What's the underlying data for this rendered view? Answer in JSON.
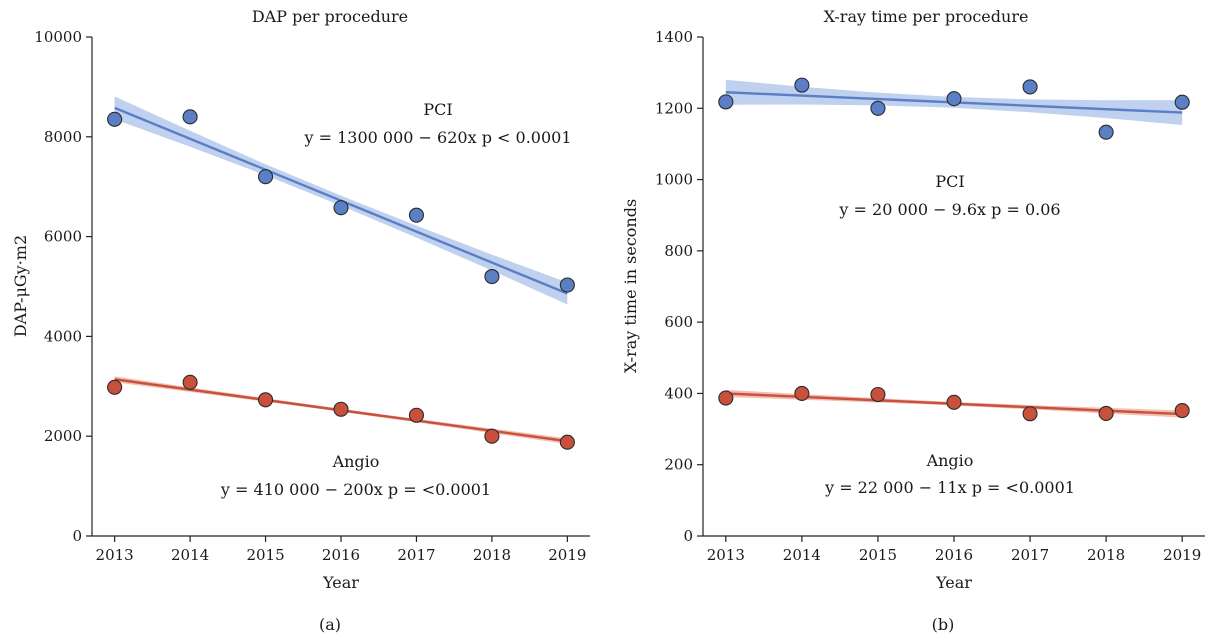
{
  "chart_data": [
    {
      "type": "scatter",
      "panel_label": "(a)",
      "title": "DAP per procedure",
      "xlabel": "Year",
      "ylabel": "DAP-μGy·m2",
      "x": [
        2013,
        2014,
        2015,
        2016,
        2017,
        2018,
        2019
      ],
      "xlim": [
        2012.7,
        2019.3
      ],
      "ylim": [
        0,
        10000
      ],
      "yticks": [
        "0",
        "2000",
        "4000",
        "6000",
        "8000",
        "10000"
      ],
      "xticks": [
        "2013",
        "2014",
        "2015",
        "2016",
        "2017",
        "2018",
        "2019"
      ],
      "grid": false,
      "series": [
        {
          "name": "PCI",
          "color": "#5b7fc4",
          "band_color": "#a9c2e8",
          "values": [
            8350,
            8400,
            7200,
            6580,
            6430,
            5200,
            5030
          ],
          "fit": [
            [
              2013,
              8580
            ],
            [
              2019,
              4860
            ]
          ],
          "band_halfwidth": [
            230,
            160,
            110,
            100,
            120,
            160,
            220
          ],
          "label": "PCI",
          "equation": "y = 1300 000 − 620x p < 0.0001"
        },
        {
          "name": "Angio",
          "color": "#c8513c",
          "band_color": "#f0a99c",
          "values": [
            2980,
            3080,
            2730,
            2540,
            2420,
            2000,
            1880
          ],
          "fit": [
            [
              2013,
              3140
            ],
            [
              2019,
              1900
            ]
          ],
          "band_halfwidth": [
            60,
            45,
            35,
            30,
            35,
            45,
            60
          ],
          "label": "Angio",
          "equation": "y = 410 000 − 200x p = <0.0001"
        }
      ]
    },
    {
      "type": "scatter",
      "panel_label": "(b)",
      "title": "X-ray time per procedure",
      "xlabel": "Year",
      "ylabel": "X-ray time in seconds",
      "x": [
        2013,
        2014,
        2015,
        2016,
        2017,
        2018,
        2019
      ],
      "xlim": [
        2012.7,
        2019.3
      ],
      "ylim": [
        0,
        1400
      ],
      "yticks": [
        "0",
        "200",
        "400",
        "600",
        "800",
        "1000",
        "1200",
        "1400"
      ],
      "xticks": [
        "2013",
        "2014",
        "2015",
        "2016",
        "2017",
        "2018",
        "2019"
      ],
      "grid": false,
      "series": [
        {
          "name": "PCI",
          "color": "#5b7fc4",
          "band_color": "#a9c2e8",
          "values": [
            1218,
            1265,
            1200,
            1227,
            1260,
            1133,
            1217
          ],
          "fit": [
            [
              2013,
              1245
            ],
            [
              2019,
              1188
            ]
          ],
          "band_halfwidth": [
            35,
            25,
            18,
            15,
            18,
            25,
            35
          ],
          "label": "PCI",
          "equation": "y = 20 000 − 9.6x p = 0.06"
        },
        {
          "name": "Angio",
          "color": "#c8513c",
          "band_color": "#f0a99c",
          "values": [
            387,
            400,
            397,
            375,
            343,
            344,
            352
          ],
          "fit": [
            [
              2013,
              400
            ],
            [
              2019,
              342
            ]
          ],
          "band_halfwidth": [
            10,
            8,
            6,
            5,
            6,
            8,
            10
          ],
          "label": "Angio",
          "equation": "y = 22 000 − 11x p = <0.0001"
        }
      ]
    }
  ]
}
